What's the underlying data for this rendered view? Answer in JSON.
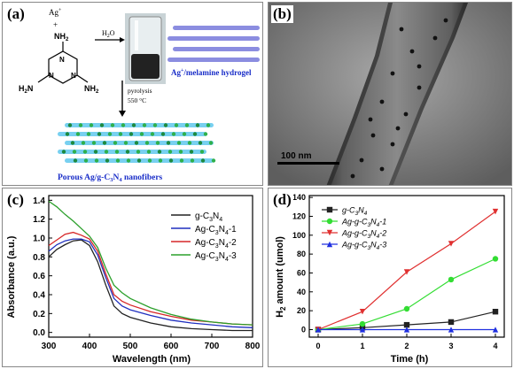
{
  "panel_a": {
    "label": "(a)",
    "ag_plus": "Ag",
    "ag_sup": "+",
    "plus": "+",
    "amine_groups": [
      "NH",
      "NH",
      "NH"
    ],
    "h2o": "H",
    "hydrogel_label": "Ag",
    "hydrogel_label_rest": "/melamine hydrogel",
    "pyrolysis": "pyrolysis",
    "temp": "550 °C",
    "product_label": "Porous Ag/g-C",
    "product_sub": "3",
    "product_n": "N",
    "product_sub2": "4",
    "product_rest": " nanofibers"
  },
  "panel_b": {
    "label": "(b)",
    "scale_bar": "100 nm"
  },
  "panel_c_label": "(c)",
  "panel_d_label": "(d)",
  "chart_data": [
    {
      "type": "line",
      "xlabel": "Wavelength (nm)",
      "ylabel": "Absorbance (a.u.)",
      "xlim": [
        300,
        800
      ],
      "ylim": [
        -0.05,
        1.45
      ],
      "xticks": [
        "300",
        "400",
        "500",
        "600",
        "700",
        "800"
      ],
      "yticks": [
        "0.0",
        "0.2",
        "0.4",
        "0.6",
        "0.8",
        "1.0",
        "1.2",
        "1.4"
      ],
      "legend_position": "top-right",
      "x": [
        300,
        320,
        340,
        360,
        380,
        400,
        420,
        440,
        460,
        480,
        500,
        550,
        600,
        650,
        700,
        750,
        800
      ],
      "series": [
        {
          "name": "g-C3N4",
          "color": "#222222",
          "values": [
            0.8,
            0.88,
            0.93,
            0.97,
            0.98,
            0.92,
            0.75,
            0.5,
            0.28,
            0.2,
            0.16,
            0.1,
            0.06,
            0.04,
            0.03,
            0.02,
            0.02
          ]
        },
        {
          "name": "Ag-C3N4-1",
          "color": "#1f2fbf",
          "values": [
            0.86,
            0.93,
            0.97,
            0.99,
            0.99,
            0.96,
            0.82,
            0.58,
            0.36,
            0.28,
            0.24,
            0.18,
            0.13,
            0.1,
            0.08,
            0.06,
            0.05
          ]
        },
        {
          "name": "Ag-C3N4-2",
          "color": "#d62728",
          "values": [
            0.92,
            0.98,
            1.04,
            1.06,
            1.03,
            0.99,
            0.86,
            0.62,
            0.4,
            0.33,
            0.29,
            0.22,
            0.17,
            0.13,
            0.11,
            0.09,
            0.08
          ]
        },
        {
          "name": "Ag-C3N4-3",
          "color": "#2ca02c",
          "values": [
            1.39,
            1.33,
            1.25,
            1.18,
            1.1,
            1.02,
            0.9,
            0.68,
            0.5,
            0.42,
            0.36,
            0.26,
            0.19,
            0.14,
            0.11,
            0.09,
            0.08
          ]
        }
      ]
    },
    {
      "type": "line",
      "xlabel": "Time (h)",
      "ylabel": "H",
      "ylabel_sub": "2",
      "ylabel_rest": " amount (umol)",
      "xlim": [
        -0.2,
        4.2
      ],
      "ylim": [
        -8,
        142
      ],
      "xticks": [
        "0",
        "1",
        "2",
        "3",
        "4"
      ],
      "yticks": [
        "0",
        "20",
        "40",
        "60",
        "80",
        "100",
        "120",
        "140"
      ],
      "legend_position": "top-left",
      "x": [
        0,
        1,
        2,
        3,
        4
      ],
      "series": [
        {
          "name": "g-C3N4",
          "color": "#222222",
          "marker": "square",
          "values": [
            0,
            2,
            5,
            8,
            19
          ]
        },
        {
          "name": "Ag-g-C3N4-1",
          "color": "#33dd33",
          "marker": "circle",
          "values": [
            0,
            6,
            22,
            53,
            75
          ]
        },
        {
          "name": "Ag-g-C3N4-2",
          "color": "#e03030",
          "marker": "triangle-down",
          "values": [
            0,
            19,
            61,
            91,
            125
          ]
        },
        {
          "name": "Ag-g-C3N4-3",
          "color": "#2030e0",
          "marker": "triangle-up",
          "values": [
            0,
            0,
            0,
            0,
            0
          ]
        }
      ]
    }
  ]
}
